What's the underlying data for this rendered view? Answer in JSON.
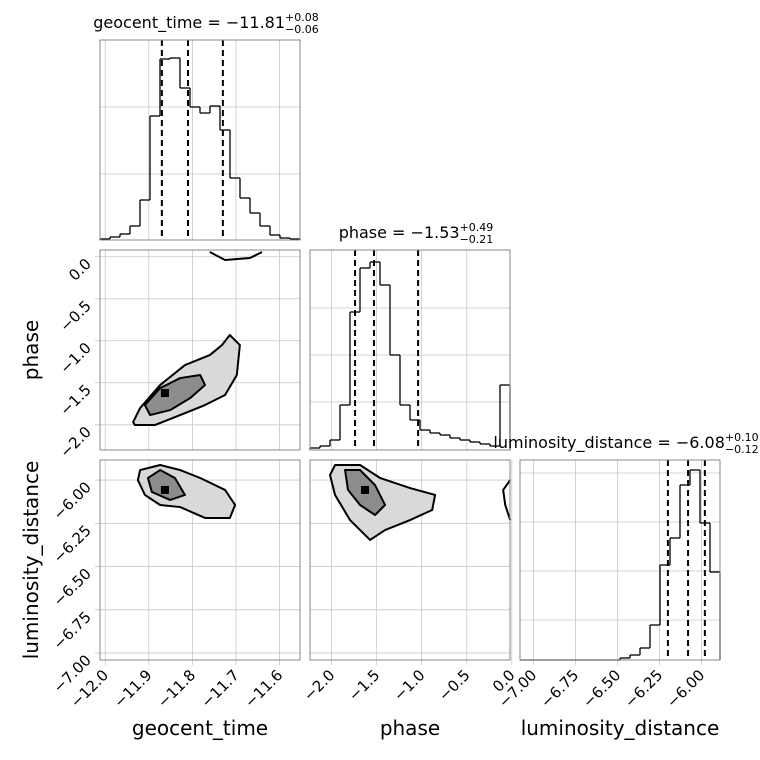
{
  "chart_data": [
    {
      "type": "histogram",
      "title": "geocent_time = −11.81",
      "title_sup": "+0.08",
      "title_sub": "−0.06",
      "bins": [
        -12.012,
        -11.98905,
        -11.9661,
        -11.94315,
        -11.9202,
        -11.89725,
        -11.8743,
        -11.85135,
        -11.8284,
        -11.80545,
        -11.7825,
        -11.75955,
        -11.7366,
        -11.71365,
        -11.6907,
        -11.66775,
        -11.6448,
        -11.62185,
        -11.5989,
        -11.57595,
        -11.553
      ],
      "values": [
        1,
        3,
        6,
        14,
        40,
        124,
        181,
        182,
        152,
        133,
        127,
        134,
        110,
        62,
        42,
        27,
        14,
        5,
        2,
        1
      ],
      "quantiles": [
        -11.87,
        -11.81,
        -11.73
      ],
      "xlim": [
        -12.012,
        -11.553
      ],
      "ylim": [
        0,
        200
      ],
      "xgrid": [
        -12.0,
        -11.9,
        -11.8,
        -11.7,
        -11.6
      ],
      "ygrid": [
        0,
        66,
        133
      ],
      "color": "#000000"
    },
    {
      "type": "histogram",
      "title": "phase = −1.53",
      "title_sup": "+0.49",
      "title_sub": "−0.21",
      "bins": [
        -2.24,
        -2.129,
        -2.018,
        -1.907,
        -1.796,
        -1.685,
        -1.574,
        -1.463,
        -1.352,
        -1.241,
        -1.13,
        -1.019,
        -0.908,
        -0.797,
        -0.686,
        -0.575,
        -0.464,
        -0.353,
        -0.242,
        -0.131,
        -0.02
      ],
      "values": [
        2,
        4,
        10,
        45,
        138,
        182,
        188,
        165,
        95,
        45,
        30,
        20,
        17,
        15,
        12,
        10,
        8,
        6,
        4,
        65
      ],
      "quantiles": [
        -1.74,
        -1.53,
        -1.04
      ],
      "xlim": [
        -2.24,
        -0.02
      ],
      "ylim": [
        0,
        200
      ],
      "xgrid": [
        -2.0,
        -1.5,
        -1.0,
        -0.5
      ],
      "ygrid": [
        0,
        48,
        95,
        142
      ],
      "color": "#000000"
    },
    {
      "type": "histogram",
      "title": "luminosity_distance = −6.08",
      "title_sup": "+0.10",
      "title_sub": "−0.12",
      "xlabel": "luminosity_distance",
      "bins": [
        -7.08,
        -7.0205,
        -6.961,
        -6.9015,
        -6.842,
        -6.7825,
        -6.723,
        -6.6635,
        -6.604,
        -6.5445,
        -6.485,
        -6.4255,
        -6.366,
        -6.3065,
        -6.247,
        -6.1875,
        -6.128,
        -6.0685,
        -6.009,
        -5.9495,
        -5.89
      ],
      "values": [
        0,
        0,
        0,
        0,
        0,
        0,
        0,
        0,
        0,
        0,
        2,
        5,
        12,
        35,
        95,
        122,
        175,
        190,
        137,
        88
      ],
      "quantiles": [
        -6.2,
        -6.08,
        -5.98
      ],
      "xlim": [
        -7.08,
        -5.89
      ],
      "ylim": [
        0,
        200
      ],
      "xticks": [
        {
          "value": -7.0,
          "label": "−7.00"
        },
        {
          "value": -6.75,
          "label": "−6.75"
        },
        {
          "value": -6.5,
          "label": "−6.50"
        },
        {
          "value": -6.25,
          "label": "−6.25"
        },
        {
          "value": -6.0,
          "label": "−6.00"
        }
      ],
      "ygrid": [
        0,
        40,
        89,
        138,
        187
      ],
      "color": "#000000"
    },
    {
      "type": "contour",
      "ylabel": "phase",
      "xlim": [
        -12.012,
        -11.553
      ],
      "ylim": [
        -2.3,
        0.08
      ],
      "xgrid": [
        -12.0,
        -11.9,
        -11.8,
        -11.7,
        -11.6
      ],
      "yticks": [
        {
          "value": -2.0,
          "label": "−2.0"
        },
        {
          "value": -1.5,
          "label": "−1.5"
        },
        {
          "value": -1.0,
          "label": "−1.0"
        },
        {
          "value": -0.5,
          "label": "−0.5"
        },
        {
          "value": 0,
          "label": "0.0"
        }
      ],
      "contours": [
        {
          "x": [
            -11.936,
            -11.92,
            -11.874,
            -11.817,
            -11.76,
            -11.732,
            -11.714,
            -11.691,
            -11.698,
            -11.725,
            -11.771,
            -11.828,
            -11.886,
            -11.932
          ],
          "y": [
            -1.968,
            -1.801,
            -1.527,
            -1.289,
            -1.17,
            -1.051,
            -0.932,
            -1.051,
            -1.408,
            -1.646,
            -1.765,
            -1.884,
            -2.003,
            -2.003
          ],
          "color": "#d9d9d9"
        },
        {
          "x": [
            -11.909,
            -11.874,
            -11.828,
            -11.782,
            -11.771,
            -11.805,
            -11.851,
            -11.897
          ],
          "y": [
            -1.765,
            -1.563,
            -1.444,
            -1.408,
            -1.527,
            -1.682,
            -1.825,
            -1.884
          ],
          "color": "#8c8c8c"
        },
        {
          "x": [
            -11.76,
            -11.725,
            -11.668,
            -11.64
          ],
          "y": [
            0.056,
            -0.039,
            -0.015,
            0.056
          ],
          "color": "none"
        }
      ],
      "peak": {
        "x": -11.863,
        "y": -1.622
      }
    },
    {
      "type": "contour",
      "xlabel": "geocent_time",
      "ylabel": "luminosity_distance",
      "xlim": [
        -12.012,
        -11.553
      ],
      "ylim": [
        -7.04,
        -5.884
      ],
      "xticks": [
        {
          "value": -12.0,
          "label": "−12.0"
        },
        {
          "value": -11.9,
          "label": "−11.9"
        },
        {
          "value": -11.8,
          "label": "−11.8"
        },
        {
          "value": -11.7,
          "label": "−11.7"
        },
        {
          "value": -11.6,
          "label": "−11.6"
        }
      ],
      "yticks": [
        {
          "value": -7.0,
          "label": "−7.00"
        },
        {
          "value": -6.75,
          "label": "−6.75"
        },
        {
          "value": -6.5,
          "label": "−6.50"
        },
        {
          "value": -6.25,
          "label": "−6.25"
        },
        {
          "value": -6.0,
          "label": "−6.00"
        }
      ],
      "contours": [
        {
          "x": [
            -11.92,
            -11.874,
            -11.828,
            -11.782,
            -11.725,
            -11.702,
            -11.714,
            -11.771,
            -11.828,
            -11.874,
            -11.909,
            -11.925
          ],
          "y": [
            -5.942,
            -5.913,
            -5.942,
            -5.988,
            -6.057,
            -6.144,
            -6.219,
            -6.219,
            -6.156,
            -6.144,
            -6.086,
            -6.0
          ],
          "color": "#d9d9d9"
        },
        {
          "x": [
            -11.902,
            -11.874,
            -11.84,
            -11.817,
            -11.851,
            -11.893
          ],
          "y": [
            -5.988,
            -5.942,
            -5.988,
            -6.086,
            -6.115,
            -6.069
          ],
          "color": "#8c8c8c"
        }
      ],
      "peak": {
        "x": -11.863,
        "y": -6.057
      }
    },
    {
      "type": "contour",
      "xlabel": "phase",
      "xlim": [
        -2.24,
        -0.02
      ],
      "ylim": [
        -7.04,
        -5.884
      ],
      "ygrid": [
        -7.0,
        -6.75,
        -6.5,
        -6.25,
        -6.0
      ],
      "xticks": [
        {
          "value": -2.0,
          "label": "−2.0"
        },
        {
          "value": -1.5,
          "label": "−1.5"
        },
        {
          "value": -1.0,
          "label": "−1.0"
        },
        {
          "value": -0.5,
          "label": "−0.5"
        },
        {
          "value": 0,
          "label": "0.0"
        }
      ],
      "contours": [
        {
          "x": [
            -1.962,
            -1.684,
            -1.462,
            -1.129,
            -0.851,
            -0.884,
            -1.129,
            -1.407,
            -1.573,
            -1.796,
            -1.962,
            -2.018
          ],
          "y": [
            -5.913,
            -5.913,
            -5.988,
            -6.046,
            -6.086,
            -6.173,
            -6.231,
            -6.289,
            -6.346,
            -6.231,
            -6.086,
            -5.971
          ],
          "color": "#d9d9d9"
        },
        {
          "x": [
            -1.851,
            -1.684,
            -1.518,
            -1.407,
            -1.518,
            -1.684,
            -1.818
          ],
          "y": [
            -5.942,
            -5.942,
            -6.029,
            -6.144,
            -6.202,
            -6.144,
            -6.057
          ],
          "color": "#8c8c8c"
        },
        {
          "x": [
            -0.018,
            -0.096,
            -0.073,
            -0.018
          ],
          "y": [
            -6.0,
            -6.057,
            -6.144,
            -6.231
          ],
          "color": "none"
        }
      ],
      "peak": {
        "x": -1.629,
        "y": -6.057
      }
    }
  ]
}
